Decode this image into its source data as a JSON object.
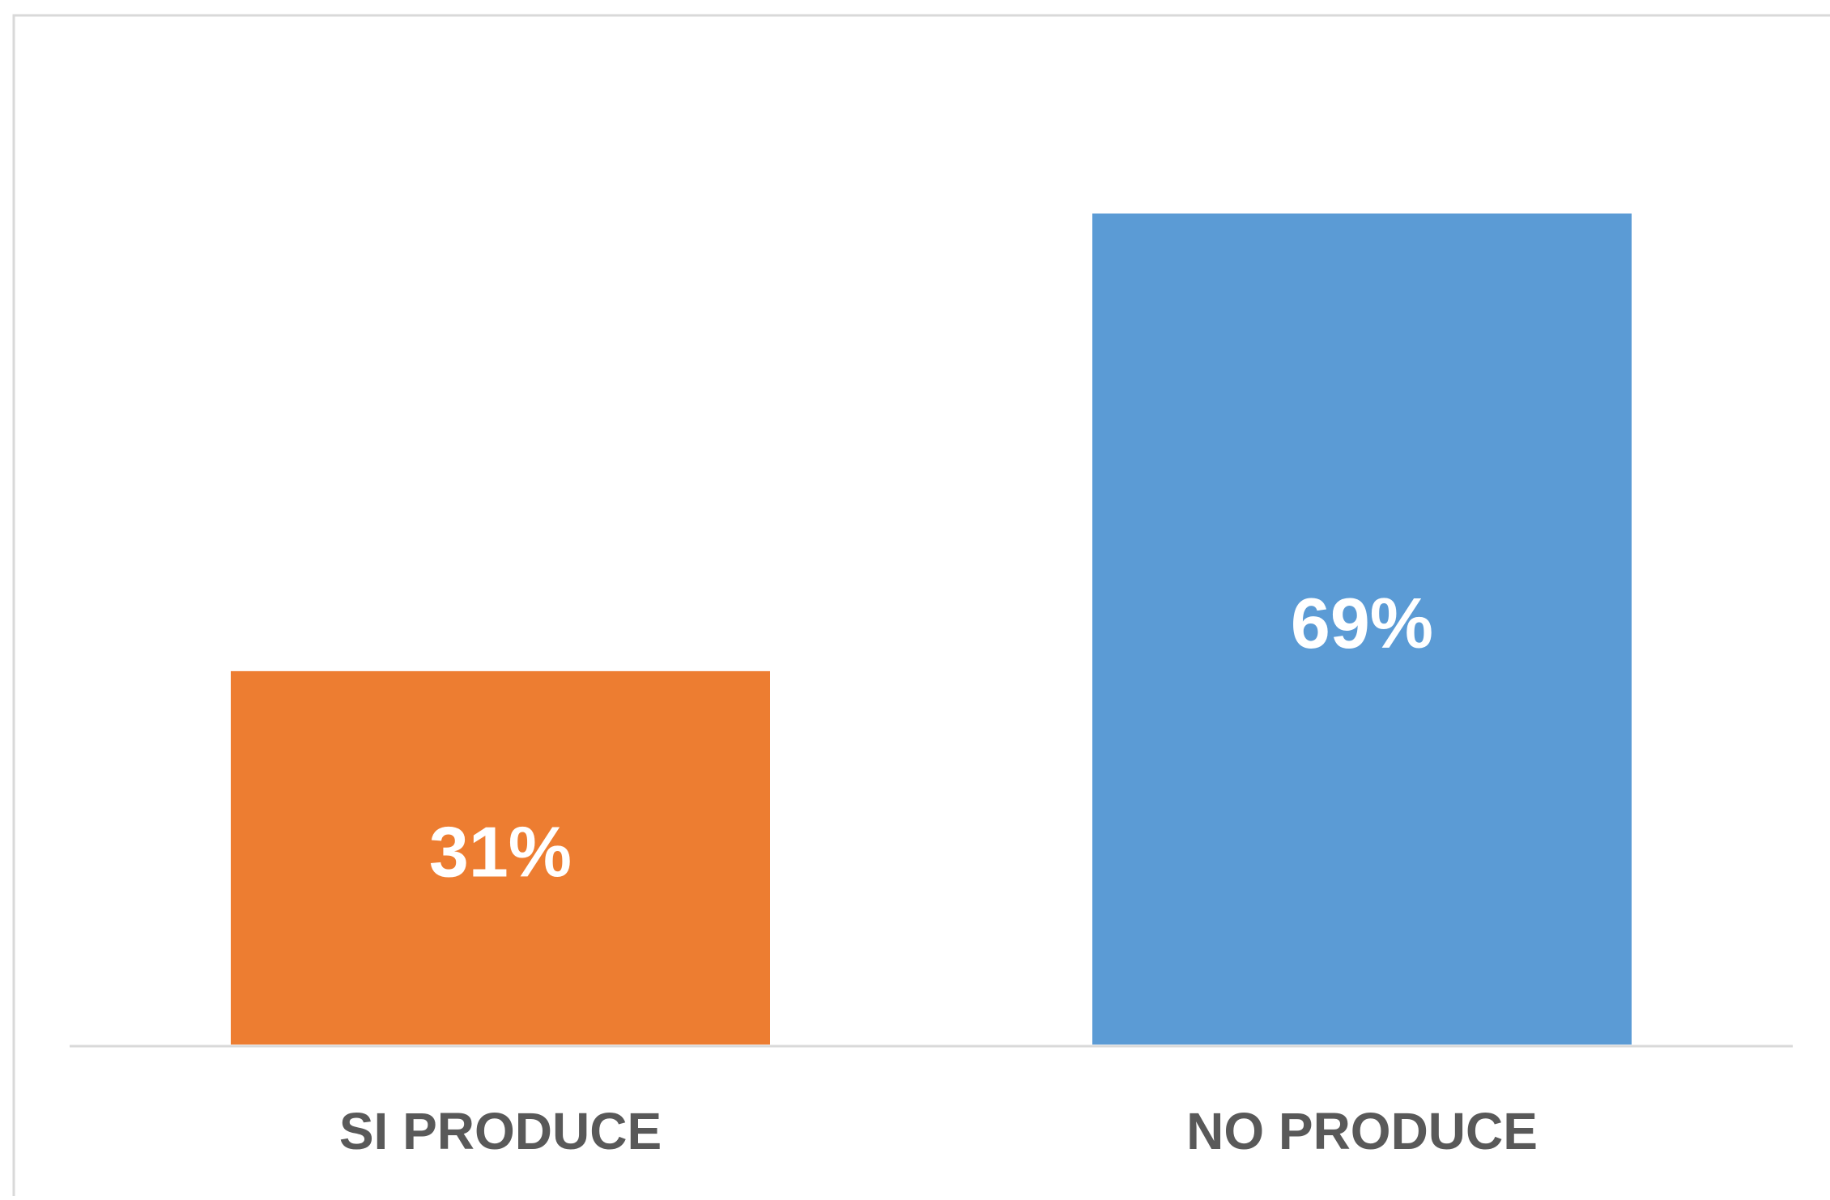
{
  "chart_data": {
    "type": "bar",
    "categories": [
      "SI PRODUCE",
      "NO PRODUCE"
    ],
    "values": [
      31,
      69
    ],
    "data_labels": [
      "31%",
      "69%"
    ],
    "colors": [
      "#ED7D31",
      "#5B9BD5"
    ],
    "ylim": [
      0,
      80
    ],
    "grid": false,
    "legend": "none",
    "title": "",
    "xlabel": "",
    "ylabel": ""
  }
}
